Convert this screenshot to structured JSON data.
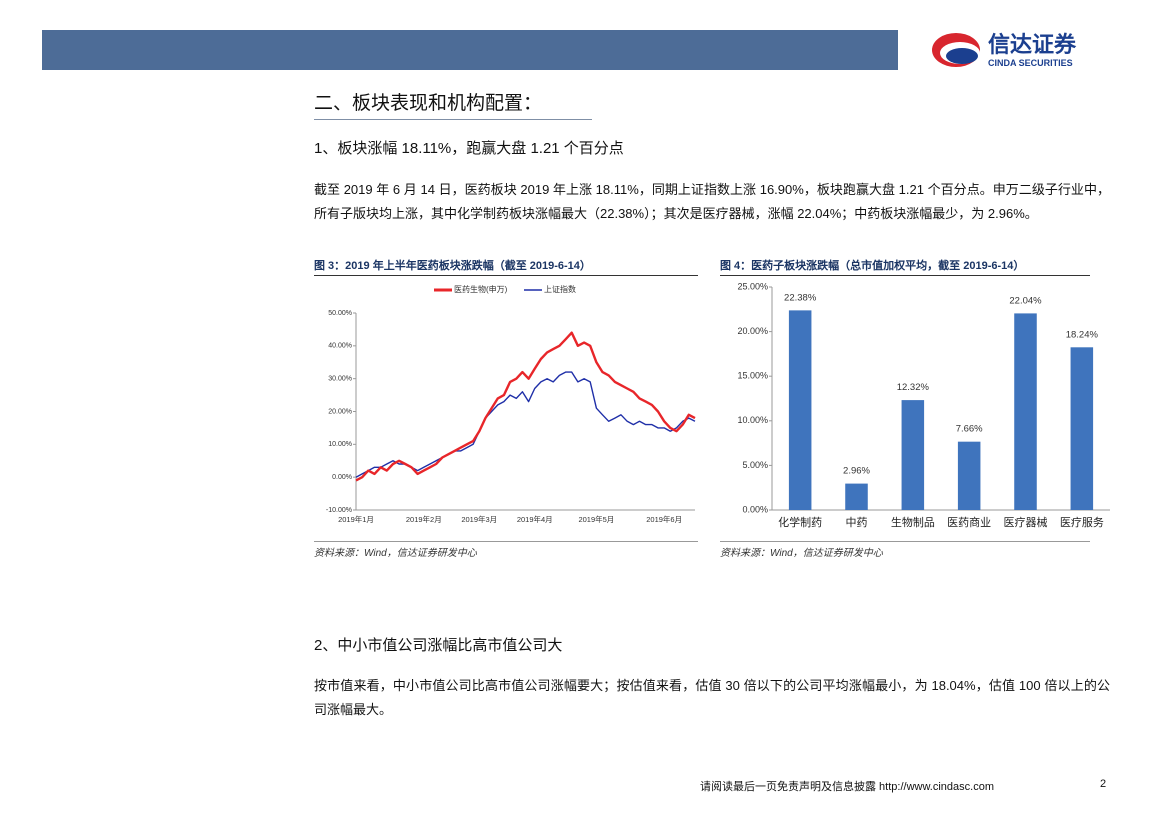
{
  "header": {
    "brand": "信达证券",
    "brand_en": "CINDA SECURITIES"
  },
  "section_title": "二、板块表现和机构配置：",
  "subsection_1": "1、板块涨幅 18.11%，跑赢大盘 1.21 个百分点",
  "paragraph_1": "截至 2019 年 6 月 14 日，医药板块 2019 年上涨 18.11%，同期上证指数上涨 16.90%，板块跑赢大盘 1.21 个百分点。申万二级子行业中，所有子版块均上涨，其中化学制药板块涨幅最大（22.38%）；其次是医疗器械，涨幅 22.04%；中药板块涨幅最少，为 2.96%。",
  "chart_data": [
    {
      "type": "line",
      "title": "图 3：2019 年上半年医药板块涨跌幅（截至 2019-6-14）",
      "source": "资料来源：Wind，信达证券研发中心",
      "categories": [
        "2019年1月",
        null,
        null,
        null,
        null,
        null,
        null,
        null,
        null,
        null,
        null,
        "2019年2月",
        null,
        null,
        null,
        null,
        null,
        null,
        null,
        null,
        "2019年3月",
        null,
        null,
        null,
        null,
        null,
        null,
        null,
        null,
        "2019年4月",
        null,
        null,
        null,
        null,
        null,
        null,
        null,
        null,
        null,
        "2019年5月",
        null,
        null,
        null,
        null,
        null,
        null,
        null,
        null,
        null,
        null,
        "2019年6月",
        null,
        null,
        null,
        null,
        null
      ],
      "series": [
        {
          "name": "医药生物(申万)",
          "color": "#e8262a",
          "values": [
            -1,
            0,
            2,
            1,
            3,
            2,
            4,
            5,
            4,
            3,
            1,
            2,
            3,
            4,
            6,
            7,
            8,
            9,
            10,
            11,
            14,
            18,
            21,
            24,
            25,
            29,
            30,
            32,
            30,
            33,
            36,
            38,
            39,
            40,
            42,
            44,
            40,
            41,
            40,
            35,
            32,
            31,
            29,
            28,
            27,
            26,
            24,
            23,
            22,
            20,
            17,
            15,
            14,
            16,
            19,
            18
          ]
        },
        {
          "name": "上证指数",
          "color": "#1f2fa8",
          "values": [
            0,
            1,
            2,
            3,
            3,
            4,
            5,
            4,
            4,
            3,
            2,
            3,
            4,
            5,
            6,
            7,
            8,
            8,
            9,
            10,
            14,
            18,
            20,
            22,
            23,
            25,
            24,
            26,
            23,
            27,
            29,
            30,
            29,
            31,
            32,
            32,
            29,
            30,
            29,
            21,
            19,
            17,
            18,
            19,
            17,
            16,
            17,
            16,
            16,
            15,
            15,
            14,
            15,
            17,
            18,
            17
          ]
        }
      ],
      "ylim": [
        -10,
        50
      ],
      "yticks": [
        {
          "value": -10,
          "label": "-10.00%"
        },
        {
          "value": 0,
          "label": "0.00%"
        },
        {
          "value": 10,
          "label": "10.00%"
        },
        {
          "value": 20,
          "label": "20.00%"
        },
        {
          "value": 30,
          "label": "30.00%"
        },
        {
          "value": 40,
          "label": "40.00%"
        },
        {
          "value": 50,
          "label": "50.00%"
        }
      ],
      "legend": "top"
    },
    {
      "type": "bar",
      "title": "图 4：医药子板块涨跌幅（总市值加权平均，截至 2019-6-14）",
      "source": "资料来源：Wind，信达证券研发中心",
      "categories": [
        "化学制药",
        "中药",
        "生物制品",
        "医药商业",
        "医疗器械",
        "医疗服务"
      ],
      "values": [
        22.38,
        2.96,
        12.32,
        7.66,
        22.04,
        18.24
      ],
      "value_labels": [
        "22.38%",
        "2.96%",
        "12.32%",
        "7.66%",
        "22.04%",
        "18.24%"
      ],
      "color": "#3f74bd",
      "ylim": [
        0,
        25
      ],
      "yticks": [
        {
          "value": 0,
          "label": "0.00%"
        },
        {
          "value": 5,
          "label": "5.00%"
        },
        {
          "value": 10,
          "label": "10.00%"
        },
        {
          "value": 15,
          "label": "15.00%"
        },
        {
          "value": 20,
          "label": "20.00%"
        },
        {
          "value": 25,
          "label": "25.00%"
        }
      ]
    }
  ],
  "subsection_2": "2、中小市值公司涨幅比高市值公司大",
  "paragraph_2": "按市值来看，中小市值公司比高市值公司涨幅要大；按估值来看，估值 30 倍以下的公司平均涨幅最小，为 18.04%，估值 100 倍以上的公司涨幅最大。",
  "footer": {
    "disclaimer": "请阅读最后一页免责声明及信息披露 http://www.cindasc.com",
    "page": 2
  }
}
